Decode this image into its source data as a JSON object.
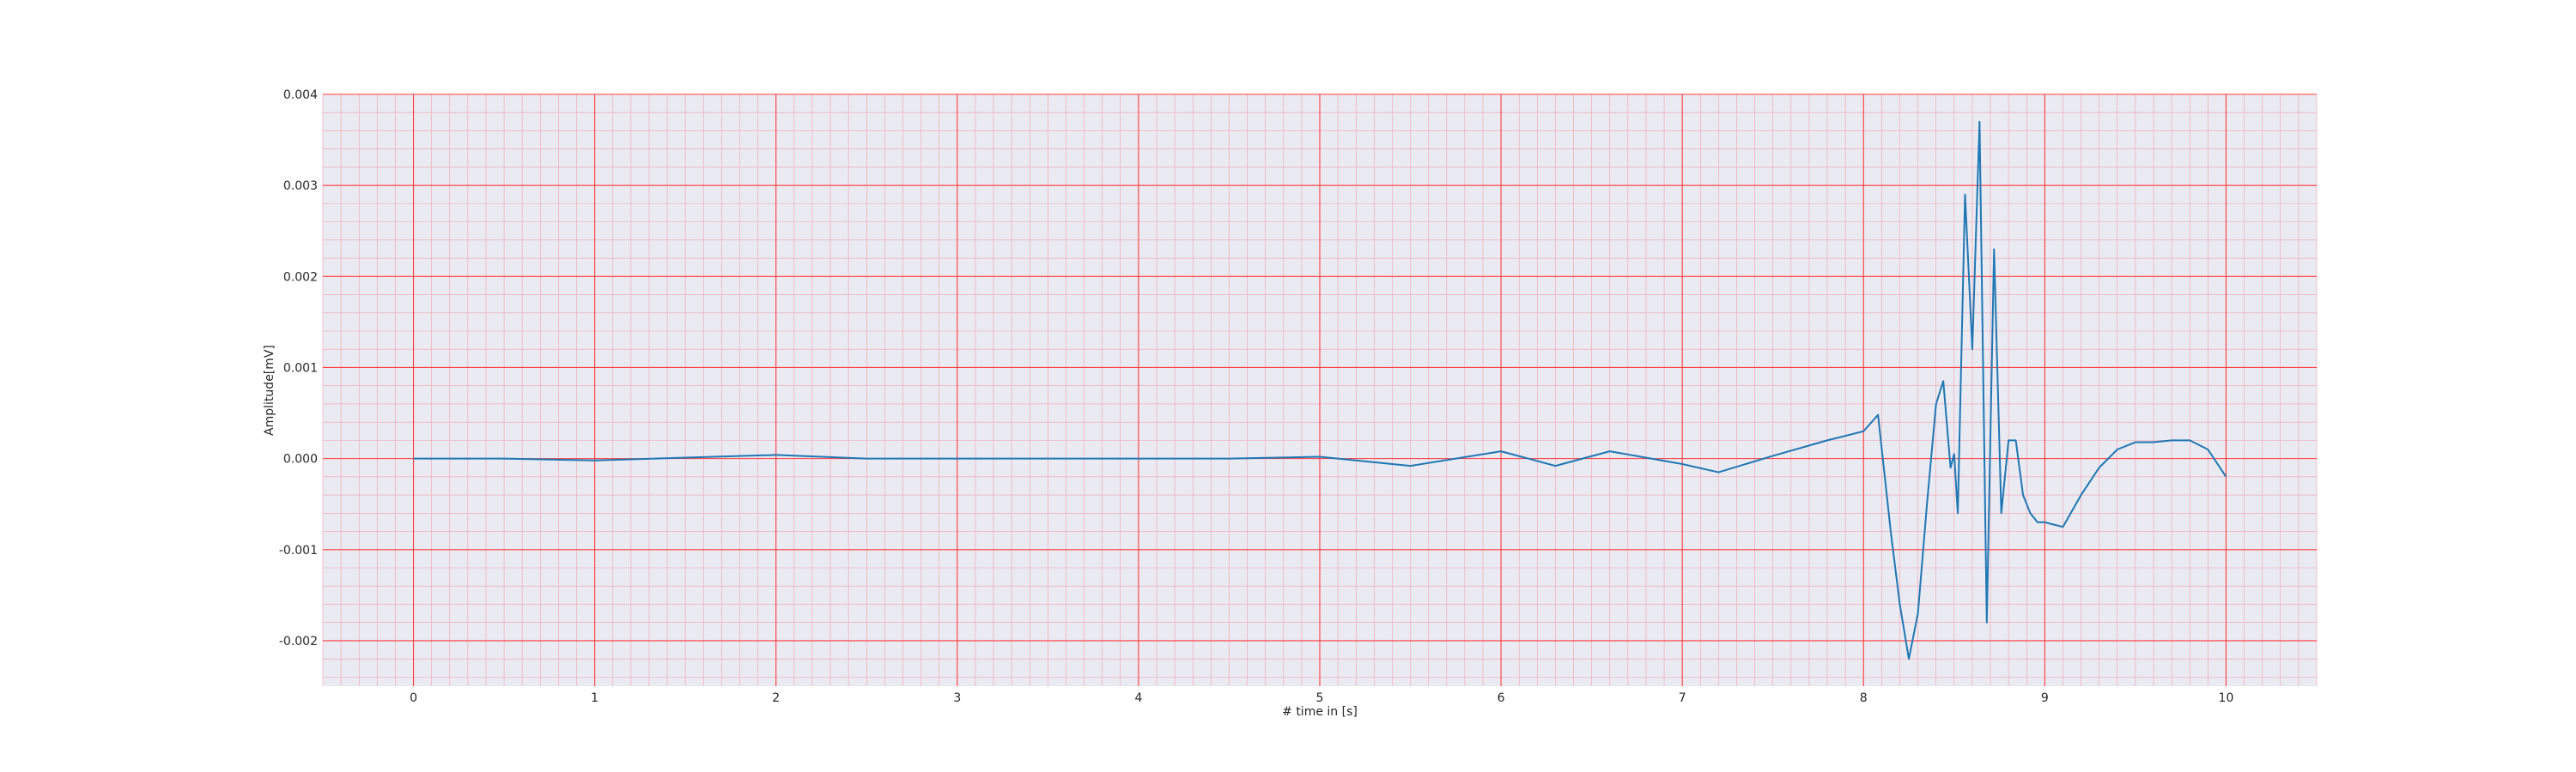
{
  "chart_data": {
    "type": "line",
    "title": "",
    "xlabel": "# time in [s]",
    "ylabel": "Amplitude[mV]",
    "xlim": [
      -0.5,
      10.5
    ],
    "ylim": [
      -0.0025,
      0.004
    ],
    "xticks": [
      0,
      1,
      2,
      3,
      4,
      5,
      6,
      7,
      8,
      9,
      10
    ],
    "xtick_labels": [
      "0",
      "1",
      "2",
      "3",
      "4",
      "5",
      "6",
      "7",
      "8",
      "9",
      "10"
    ],
    "yticks": [
      -0.002,
      -0.001,
      0.0,
      0.001,
      0.002,
      0.003,
      0.004
    ],
    "ytick_labels": [
      "-0.002",
      "-0.001",
      "0.000",
      "0.001",
      "0.002",
      "0.003",
      "0.004"
    ],
    "grid": true,
    "minor_grid": true,
    "colors": {
      "background": "#eaeaf2",
      "major_grid": "#ff3b3b",
      "minor_grid": "#f4a0aa",
      "line": "#1f77b4"
    },
    "series": [
      {
        "x": [
          0.0,
          0.5,
          1.0,
          1.5,
          2.0,
          2.5,
          3.0,
          3.5,
          4.0,
          4.5,
          5.0,
          5.5,
          6.0,
          6.3,
          6.6,
          7.0,
          7.2,
          7.5,
          7.8,
          8.0,
          8.08,
          8.15,
          8.2,
          8.25,
          8.3,
          8.35,
          8.4,
          8.44,
          8.48,
          8.5,
          8.52,
          8.56,
          8.6,
          8.64,
          8.68,
          8.72,
          8.76,
          8.8,
          8.84,
          8.88,
          8.92,
          8.96,
          9.0,
          9.1,
          9.2,
          9.3,
          9.4,
          9.5,
          9.6,
          9.7,
          9.8,
          9.9,
          10.0
        ],
        "y": [
          0.0,
          0.0,
          -2e-05,
          1e-05,
          4e-05,
          0.0,
          0.0,
          0.0,
          0.0,
          0.0,
          2e-05,
          -8e-05,
          8e-05,
          -8e-05,
          8e-05,
          -6e-05,
          -0.00015,
          3e-05,
          0.0002,
          0.0003,
          0.00048,
          -0.0008,
          -0.0016,
          -0.0022,
          -0.0017,
          -0.0005,
          0.0006,
          0.00085,
          -0.0001,
          5e-05,
          -0.0006,
          0.0029,
          0.0012,
          0.0037,
          -0.0018,
          0.0023,
          -0.0006,
          0.0002,
          0.0002,
          -0.0004,
          -0.0006,
          -0.0007,
          -0.0007,
          -0.00075,
          -0.0004,
          -0.0001,
          0.0001,
          0.00018,
          0.00018,
          0.0002,
          0.0002,
          0.0001,
          -0.0002
        ]
      }
    ]
  }
}
